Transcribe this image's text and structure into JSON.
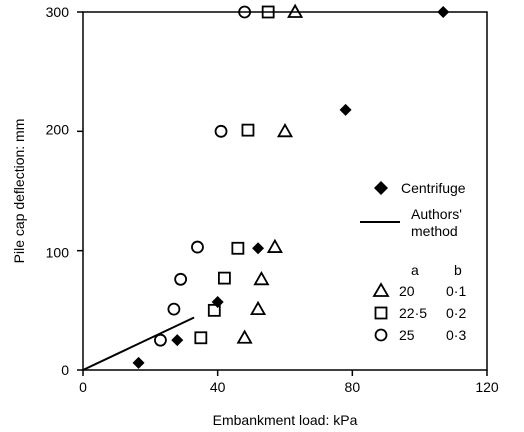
{
  "chart_data": {
    "type": "scatter",
    "xlabel": "Embankment load: kPa",
    "ylabel": "Pile cap deflection: mm",
    "xlim": [
      0,
      120
    ],
    "ylim": [
      0,
      300
    ],
    "xticks": [
      "0",
      "40",
      "80",
      "120"
    ],
    "yticks": [
      "0",
      "100",
      "200",
      "300"
    ],
    "grid": false,
    "legend_position": "right",
    "series": [
      {
        "name": "Centrifuge",
        "marker": "filled-diamond",
        "points": [
          [
            16.5,
            6
          ],
          [
            28,
            25
          ],
          [
            40,
            57
          ],
          [
            52,
            102
          ],
          [
            78,
            218
          ],
          [
            107,
            300
          ]
        ]
      },
      {
        "name": "Authors' method",
        "marker": "line",
        "points": [
          [
            0,
            0
          ],
          [
            33,
            44
          ]
        ]
      },
      {
        "name": "20",
        "b": "0·1",
        "marker": "open-triangle",
        "points": [
          [
            57,
            103
          ],
          [
            53,
            76
          ],
          [
            52,
            51
          ],
          [
            48,
            27
          ],
          [
            60,
            200
          ],
          [
            63,
            300
          ]
        ]
      },
      {
        "name": "22·5",
        "b": "0·2",
        "marker": "open-square",
        "points": [
          [
            55,
            300
          ],
          [
            49,
            201
          ],
          [
            46,
            102
          ],
          [
            42,
            77
          ],
          [
            39,
            50
          ],
          [
            35,
            27
          ]
        ]
      },
      {
        "name": "25",
        "b": "0·3",
        "marker": "open-circle",
        "points": [
          [
            48,
            300
          ],
          [
            41,
            200
          ],
          [
            34,
            103
          ],
          [
            29,
            76
          ],
          [
            27,
            51
          ],
          [
            23,
            25
          ]
        ]
      }
    ],
    "legend": {
      "centrifuge_label": "Centrifuge",
      "authors_label_line1": "Authors'",
      "authors_label_line2": "method",
      "header_a": "a",
      "header_b": "b",
      "rows": [
        {
          "a": "20",
          "b": "0·1",
          "marker": "open-triangle"
        },
        {
          "a": "22·5",
          "b": "0·2",
          "marker": "open-square"
        },
        {
          "a": "25",
          "b": "0·3",
          "marker": "open-circle"
        }
      ]
    }
  }
}
